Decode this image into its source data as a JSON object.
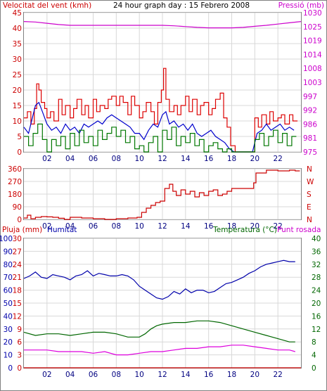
{
  "chart_data": [
    {
      "id": "wind",
      "type": "line",
      "title": "24 hour graph day : 15 Febrero 2008",
      "left_label": "Velocitat del vent (kmh)",
      "right_label": "Pressió (mb)",
      "x_ticks": [
        "02",
        "04",
        "06",
        "08",
        "10",
        "12",
        "14",
        "16",
        "18",
        "20",
        "22"
      ],
      "xlim": [
        0,
        24
      ],
      "ylim_left": [
        0,
        45
      ],
      "y_ticks_left": [
        "0",
        "5",
        "10",
        "15",
        "20",
        "25",
        "30",
        "35",
        "40",
        "45"
      ],
      "ylim_right": [
        975,
        1030
      ],
      "y_ticks_right": [
        "975",
        "981",
        "986",
        "992",
        "997",
        "1003",
        "1008",
        "1014",
        "1019",
        "1025",
        "1030"
      ],
      "grid": true,
      "series": [
        {
          "key": "gust",
          "axis": "left",
          "color": "#dd0000",
          "step": true,
          "x": [
            0,
            0.3,
            0.6,
            0.9,
            1.1,
            1.3,
            1.5,
            1.8,
            2.0,
            2.3,
            2.6,
            3.0,
            3.3,
            3.6,
            4.0,
            4.3,
            4.6,
            5.0,
            5.3,
            5.6,
            6.0,
            6.3,
            6.6,
            7.0,
            7.3,
            7.6,
            8.0,
            8.3,
            8.6,
            9.0,
            9.3,
            9.6,
            10.0,
            10.3,
            10.6,
            11.0,
            11.3,
            11.6,
            11.9,
            12.1,
            12.3,
            12.6,
            13.0,
            13.3,
            13.6,
            14.0,
            14.3,
            14.6,
            15.0,
            15.3,
            15.6,
            16.0,
            16.3,
            16.6,
            17.0,
            17.3,
            17.6,
            17.9,
            18.3,
            18.6,
            19.0,
            19.4,
            19.7,
            20.0,
            20.3,
            20.6,
            21.0,
            21.3,
            21.6,
            22.0,
            22.3,
            22.6,
            23.0,
            23.3
          ],
          "values": [
            11,
            13,
            9,
            14,
            22,
            20,
            16,
            14,
            11,
            13,
            10,
            17,
            12,
            15,
            11,
            14,
            17,
            12,
            15,
            11,
            17,
            13,
            15,
            14,
            17,
            18,
            15,
            18,
            16,
            12,
            18,
            15,
            11,
            13,
            16,
            13,
            9,
            16,
            20,
            27,
            17,
            13,
            15,
            12,
            15,
            18,
            13,
            17,
            12,
            15,
            16,
            12,
            14,
            17,
            19,
            11,
            8,
            2,
            0,
            0,
            0,
            0,
            0,
            11,
            8,
            12,
            9,
            13,
            10,
            11,
            12,
            9,
            12,
            10
          ]
        },
        {
          "key": "average",
          "axis": "left",
          "color": "#0000cc",
          "step": false,
          "x": [
            0,
            0.4,
            0.8,
            1.0,
            1.3,
            1.6,
            2.0,
            2.4,
            2.8,
            3.2,
            3.6,
            4.0,
            4.4,
            4.8,
            5.2,
            5.6,
            6.0,
            6.4,
            6.8,
            7.2,
            7.6,
            8.0,
            8.4,
            8.8,
            9.2,
            9.6,
            10.0,
            10.4,
            10.8,
            11.2,
            11.6,
            12.0,
            12.3,
            12.6,
            13.0,
            13.4,
            13.8,
            14.2,
            14.6,
            15.0,
            15.4,
            15.8,
            16.2,
            16.6,
            17.0,
            17.4,
            17.8,
            18.2,
            18.6,
            19.0,
            19.4,
            19.8,
            20.2,
            20.6,
            21.0,
            21.4,
            21.8,
            22.2,
            22.6,
            23.0,
            23.4
          ],
          "values": [
            8,
            6,
            12,
            15,
            16,
            13,
            9,
            7,
            8,
            6,
            9,
            7,
            8,
            6,
            9,
            8,
            9,
            10,
            9,
            11,
            12,
            11,
            10,
            9,
            8,
            6,
            6,
            4,
            7,
            9,
            8,
            12,
            13,
            9,
            10,
            8,
            9,
            7,
            9,
            6,
            5,
            6,
            7,
            5,
            4,
            3,
            1,
            0,
            0,
            0,
            0,
            0,
            6,
            7,
            9,
            7,
            8,
            9,
            7,
            8,
            7
          ]
        },
        {
          "key": "min",
          "axis": "left",
          "color": "#007700",
          "step": true,
          "x": [
            0,
            0.4,
            0.8,
            1.2,
            1.6,
            2.0,
            2.4,
            2.8,
            3.2,
            3.6,
            4.0,
            4.4,
            4.8,
            5.2,
            5.6,
            6.0,
            6.4,
            6.8,
            7.2,
            7.6,
            8.0,
            8.4,
            8.8,
            9.2,
            9.6,
            10.0,
            10.4,
            10.8,
            11.2,
            11.6,
            12.0,
            12.4,
            12.8,
            13.2,
            13.6,
            14.0,
            14.4,
            14.8,
            15.2,
            15.6,
            16.0,
            16.4,
            16.8,
            17.2,
            17.6,
            18.0,
            18.4,
            18.8,
            19.2,
            19.6,
            20.0,
            20.4,
            20.8,
            21.2,
            21.6,
            22.0,
            22.4,
            22.8,
            23.2
          ],
          "values": [
            5,
            2,
            6,
            9,
            4,
            0,
            4,
            2,
            5,
            1,
            6,
            2,
            7,
            3,
            5,
            2,
            7,
            4,
            6,
            8,
            5,
            7,
            3,
            5,
            1,
            2,
            0,
            3,
            5,
            0,
            7,
            4,
            8,
            2,
            5,
            3,
            6,
            2,
            4,
            0,
            2,
            3,
            1,
            0,
            1,
            0,
            0,
            0,
            0,
            0,
            4,
            6,
            2,
            5,
            7,
            3,
            6,
            2,
            5
          ]
        },
        {
          "key": "pressure",
          "axis": "right",
          "color": "#cc00cc",
          "step": false,
          "x": [
            0,
            1,
            2,
            3,
            4,
            5,
            6,
            7,
            8,
            9,
            10,
            11,
            12,
            13,
            14,
            15,
            16,
            17,
            18,
            19,
            20,
            21,
            22,
            23,
            24
          ],
          "values": [
            1026.5,
            1026.3,
            1025.8,
            1025.3,
            1025.0,
            1025.0,
            1025.0,
            1025.0,
            1025.0,
            1025.0,
            1025.0,
            1025.0,
            1025.0,
            1024.8,
            1024.5,
            1024.2,
            1024.0,
            1024.0,
            1024.0,
            1024.2,
            1024.6,
            1025.0,
            1025.5,
            1026.0,
            1026.5
          ]
        }
      ]
    },
    {
      "id": "direction",
      "type": "line",
      "x_ticks": [
        "02",
        "04",
        "06",
        "08",
        "10",
        "12",
        "14",
        "16",
        "18",
        "20",
        "22"
      ],
      "xlim": [
        0,
        24
      ],
      "ylim_left": [
        0,
        360
      ],
      "y_ticks_left": [
        "0",
        "90",
        "180",
        "270",
        "360"
      ],
      "right_labels": [
        "N",
        "W",
        "S",
        "E",
        "N"
      ],
      "grid": true,
      "series": [
        {
          "key": "direction",
          "axis": "left",
          "color": "#cc0000",
          "step": true,
          "x": [
            0,
            0.3,
            0.6,
            1.0,
            1.5,
            2.0,
            2.5,
            3.0,
            3.5,
            4.0,
            5.0,
            6.0,
            7.0,
            8.0,
            9.0,
            9.8,
            10.2,
            10.6,
            11.0,
            11.4,
            11.8,
            12.2,
            12.6,
            12.9,
            13.2,
            13.6,
            14.0,
            14.4,
            14.8,
            15.2,
            15.6,
            16.0,
            16.4,
            16.8,
            17.2,
            17.6,
            18.0,
            19.0,
            19.6,
            19.9,
            20.1,
            21.0,
            22.0,
            23.0,
            23.5
          ],
          "values": [
            10,
            30,
            5,
            15,
            20,
            18,
            15,
            8,
            0,
            15,
            10,
            5,
            0,
            5,
            10,
            15,
            50,
            80,
            100,
            120,
            130,
            220,
            250,
            200,
            170,
            210,
            180,
            200,
            160,
            190,
            170,
            200,
            210,
            170,
            180,
            200,
            220,
            220,
            220,
            260,
            330,
            350,
            345,
            350,
            345
          ]
        }
      ]
    },
    {
      "id": "humidity",
      "type": "line",
      "left_label_1": "Pluja (mm)",
      "left_label_2": "Humitat",
      "right_label_1": "Temperatura (°C)",
      "right_label_2": "Punt rosada",
      "x_ticks": [
        "02",
        "04",
        "06",
        "08",
        "10",
        "12",
        "14",
        "16",
        "18",
        "20",
        "22"
      ],
      "xlim": [
        0,
        24
      ],
      "ylim_left_rain": [
        0,
        30
      ],
      "y_ticks_left_rain": [
        "0",
        "3",
        "6",
        "9",
        "12",
        "15",
        "18",
        "21",
        "24",
        "27",
        "30"
      ],
      "ylim_left_hum": [
        0,
        100
      ],
      "y_ticks_left_hum": [
        "0",
        "10",
        "20",
        "30",
        "40",
        "50",
        "60",
        "70",
        "80",
        "90",
        "100"
      ],
      "ylim_right": [
        0,
        40
      ],
      "y_ticks_right": [
        "0",
        "4",
        "8",
        "12",
        "16",
        "20",
        "24",
        "28",
        "32",
        "36",
        "40"
      ],
      "grid": true,
      "series": [
        {
          "key": "humidity",
          "axis": "left_hum",
          "color": "#0000aa",
          "step": false,
          "x": [
            0,
            0.5,
            1,
            1.5,
            2,
            2.5,
            3,
            3.5,
            4,
            4.5,
            5,
            5.5,
            6,
            6.5,
            7,
            7.5,
            8,
            8.5,
            9,
            9.5,
            10,
            10.5,
            11,
            11.5,
            12,
            12.5,
            13,
            13.5,
            14,
            14.5,
            15,
            15.5,
            16,
            16.5,
            17,
            17.5,
            18,
            18.5,
            19,
            19.5,
            20,
            20.5,
            21,
            21.5,
            22,
            22.5,
            23,
            23.5
          ],
          "values": [
            69,
            71,
            74,
            70,
            69,
            72,
            71,
            70,
            68,
            71,
            72,
            75,
            71,
            73,
            72,
            71,
            71,
            72,
            71,
            68,
            63,
            60,
            57,
            54,
            53,
            55,
            59,
            57,
            61,
            58,
            60,
            60,
            58,
            59,
            62,
            65,
            66,
            68,
            70,
            73,
            75,
            78,
            80,
            81,
            82,
            83,
            82,
            82
          ]
        },
        {
          "key": "temperature",
          "axis": "right",
          "color": "#006600",
          "step": false,
          "x": [
            0,
            1,
            2,
            3,
            4,
            5,
            6,
            7,
            8,
            9,
            10,
            10.5,
            11,
            11.5,
            12,
            13,
            14,
            15,
            16,
            17,
            18,
            19,
            20,
            21,
            22,
            23,
            23.5
          ],
          "values": [
            11.0,
            10.0,
            10.5,
            10.5,
            10.0,
            10.5,
            11.0,
            11.0,
            10.5,
            9.5,
            9.5,
            10.5,
            12.0,
            13.0,
            13.5,
            14.0,
            14.0,
            14.5,
            14.5,
            14.0,
            13.0,
            12.0,
            11.0,
            10.0,
            9.0,
            8.0,
            8.0
          ]
        },
        {
          "key": "dewpoint",
          "axis": "right",
          "color": "#dd00dd",
          "step": false,
          "x": [
            0,
            1,
            2,
            3,
            4,
            5,
            6,
            7,
            8,
            9,
            10,
            11,
            12,
            13,
            14,
            15,
            16,
            17,
            18,
            19,
            20,
            21,
            22,
            23,
            23.5
          ],
          "values": [
            5.5,
            5.5,
            5.5,
            5.0,
            5.0,
            5.0,
            4.5,
            5.0,
            4.0,
            4.0,
            4.5,
            5.0,
            5.0,
            5.5,
            6.0,
            6.0,
            6.5,
            6.5,
            7.0,
            7.0,
            6.5,
            6.0,
            5.5,
            5.5,
            5.0
          ]
        },
        {
          "key": "rain",
          "axis": "left_rain",
          "color": "#cc0000",
          "step": false,
          "x": [
            0,
            24
          ],
          "values": [
            0,
            0
          ]
        }
      ]
    }
  ]
}
